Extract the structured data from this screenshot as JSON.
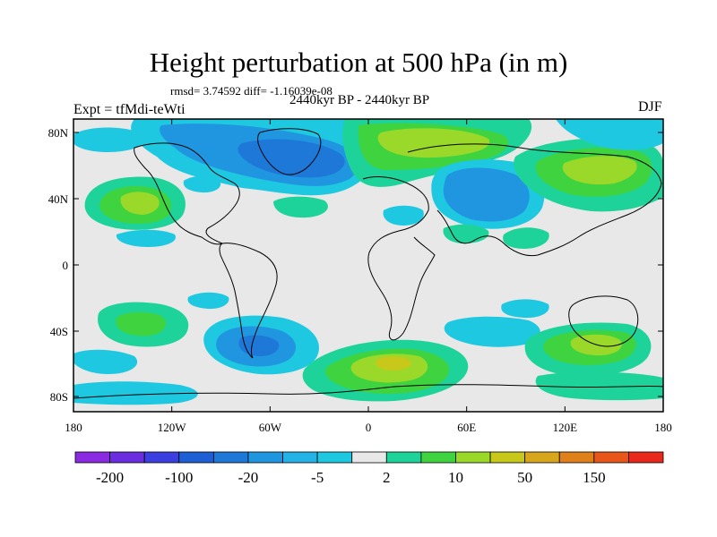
{
  "title": "Height perturbation at 500 hPa (in m)",
  "stats": "rmsd= 3.74592 diff= -1.16039e-08",
  "experiment": "Expt = tfMdi-teWti",
  "period": "2440kyr BP - 2440kyr BP",
  "season": "DJF",
  "lat_ticks": [
    "80N",
    "40N",
    "0",
    "40S",
    "80S"
  ],
  "lon_ticks": [
    "180",
    "120W",
    "60W",
    "0",
    "60E",
    "120E",
    "180"
  ],
  "colorbar": {
    "labels": [
      "-200",
      "-100",
      "-20",
      "-5",
      "2",
      "10",
      "50",
      "150"
    ],
    "colors": [
      "#8a2be2",
      "#6a2ee0",
      "#3b3fe0",
      "#1f5fd6",
      "#1e78d8",
      "#2196e0",
      "#25b2e6",
      "#1ec8e0",
      "#e8e8e8",
      "#1ed39a",
      "#3fd33f",
      "#9ad82a",
      "#c8c81a",
      "#d8a61a",
      "#e0801a",
      "#e8561a",
      "#e8281a"
    ]
  },
  "colors": {
    "neutral": "#e8e8e8",
    "light_blue": "#1ec8e0",
    "mid_blue": "#2196e0",
    "dark_blue": "#1e78d8",
    "teal": "#1ed39a",
    "green": "#3fd33f",
    "yellow_green": "#9ad82a",
    "yellow": "#c8c81a"
  }
}
